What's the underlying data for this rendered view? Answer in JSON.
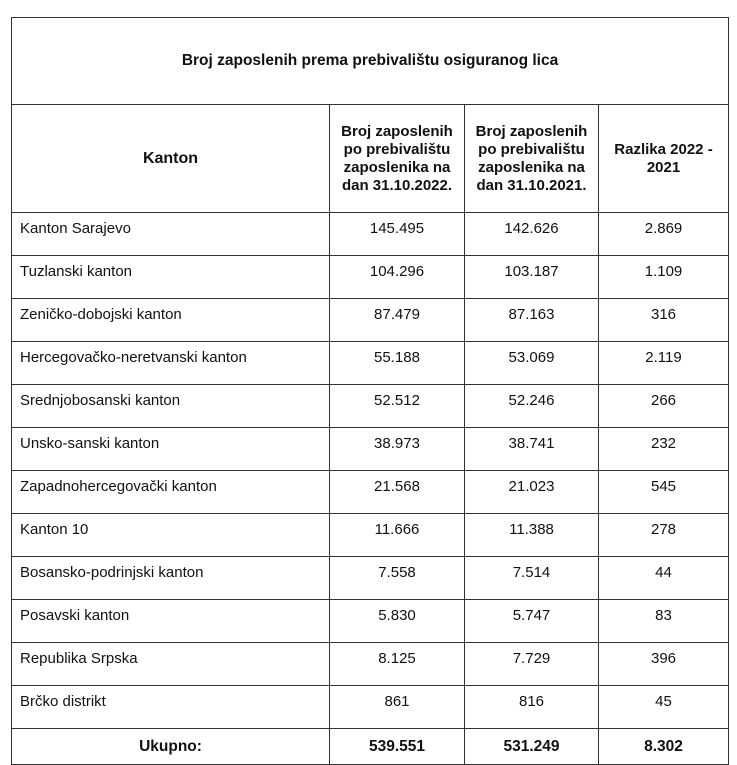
{
  "table": {
    "title": "Broj zaposlenih prema prebivalištu osiguranog lica",
    "headers": [
      "Kanton",
      "Broj zaposlenih po prebivalištu zaposlenika na dan 31.10.2022.",
      "Broj zaposlenih po prebivalištu zaposlenika na dan 31.10.2021.",
      "Razlika 2022 - 2021"
    ],
    "rows": [
      [
        "Kanton Sarajevo",
        "145.495",
        "142.626",
        "2.869"
      ],
      [
        "Tuzlanski kanton",
        "104.296",
        "103.187",
        "1.109"
      ],
      [
        "Zeničko-dobojski kanton",
        "87.479",
        "87.163",
        "316"
      ],
      [
        "Hercegovačko-neretvanski kanton",
        "55.188",
        "53.069",
        "2.119"
      ],
      [
        "Srednjobosanski kanton",
        "52.512",
        "52.246",
        "266"
      ],
      [
        "Unsko-sanski kanton",
        "38.973",
        "38.741",
        "232"
      ],
      [
        "Zapadnohercegovački  kanton",
        "21.568",
        "21.023",
        "545"
      ],
      [
        "Kanton 10",
        "11.666",
        "11.388",
        "278"
      ],
      [
        "Bosansko-podrinjski kanton",
        "7.558",
        "7.514",
        "44"
      ],
      [
        "Posavski kanton",
        "5.830",
        "5.747",
        "83"
      ],
      [
        "Republika Srpska",
        "8.125",
        "7.729",
        "396"
      ],
      [
        "Brčko distrikt",
        "861",
        "816",
        "45"
      ]
    ],
    "total": [
      "Ukupno:",
      "539.551",
      "531.249",
      "8.302"
    ]
  }
}
